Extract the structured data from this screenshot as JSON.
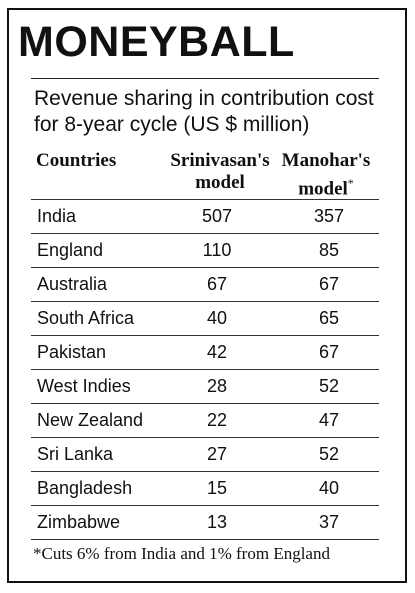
{
  "headline": "MONEYBALL",
  "subtitle": "Revenue sharing in contribution cost for 8-year cycle (US $ million)",
  "chart_data": {
    "type": "table",
    "columns": {
      "country": "Countries",
      "srinivasan": "Srinivasan's model",
      "manohar": "Manohar's model",
      "manohar_mark": "*"
    },
    "rows": [
      {
        "country": "India",
        "srinivasan": "507",
        "manohar": "357"
      },
      {
        "country": "England",
        "srinivasan": "110",
        "manohar": "85"
      },
      {
        "country": "Australia",
        "srinivasan": "67",
        "manohar": "67"
      },
      {
        "country": "South Africa",
        "srinivasan": "40",
        "manohar": "65"
      },
      {
        "country": "Pakistan",
        "srinivasan": "42",
        "manohar": "67"
      },
      {
        "country": "West Indies",
        "srinivasan": "28",
        "manohar": "52"
      },
      {
        "country": "New Zealand",
        "srinivasan": "22",
        "manohar": "47"
      },
      {
        "country": "Sri Lanka",
        "srinivasan": "27",
        "manohar": "52"
      },
      {
        "country": "Bangladesh",
        "srinivasan": "15",
        "manohar": "40"
      },
      {
        "country": "Zimbabwe",
        "srinivasan": "13",
        "manohar": "37"
      }
    ],
    "footnote": "*Cuts 6% from India and 1% from England"
  }
}
